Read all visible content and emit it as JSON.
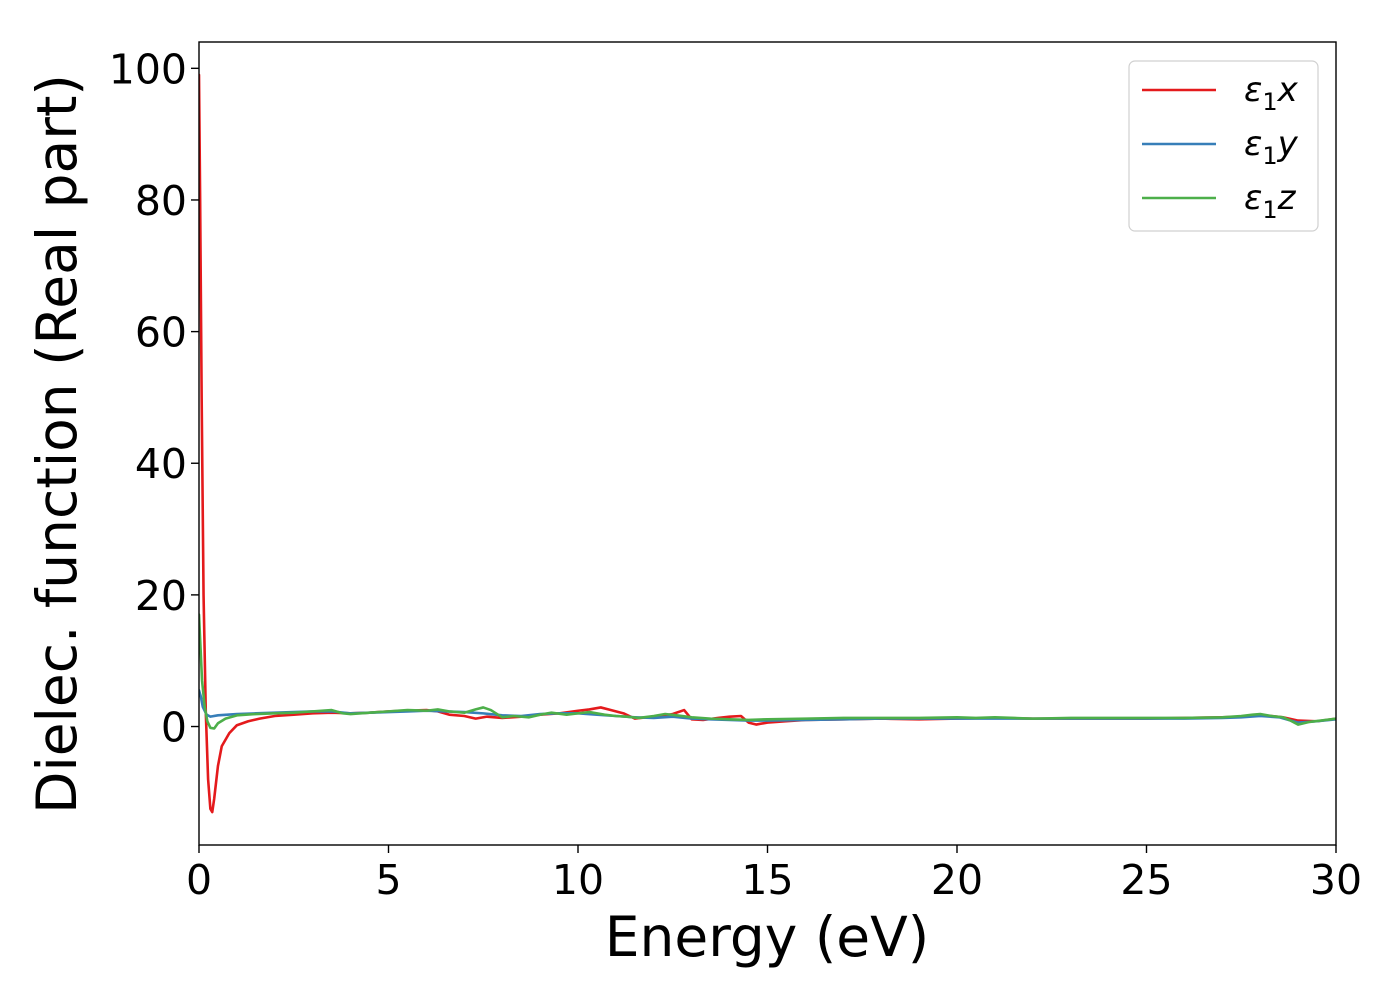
{
  "chart_data": {
    "type": "line",
    "title": "",
    "xlabel": "Energy (eV)",
    "ylabel": "Dielec. function (Real part)",
    "xlim": [
      0,
      30
    ],
    "ylim": [
      -18,
      104
    ],
    "xticks": [
      0,
      5,
      10,
      15,
      20,
      25,
      30
    ],
    "yticks": [
      0,
      20,
      40,
      60,
      80,
      100
    ],
    "grid": false,
    "legend": {
      "position": "top-right",
      "entries": [
        {
          "greek": "ε",
          "sub": "1",
          "var": "x",
          "color": "#e41a1c"
        },
        {
          "greek": "ε",
          "sub": "1",
          "var": "y",
          "color": "#377eb8"
        },
        {
          "greek": "ε",
          "sub": "1",
          "var": "z",
          "color": "#4daf4a"
        }
      ]
    },
    "series": [
      {
        "color": "#e41a1c",
        "x": [
          0,
          0.03,
          0.07,
          0.12,
          0.18,
          0.24,
          0.3,
          0.35,
          0.4,
          0.5,
          0.6,
          0.8,
          1.0,
          1.3,
          1.6,
          2.0,
          2.5,
          3.0,
          3.5,
          4.0,
          4.5,
          5.0,
          5.5,
          6.0,
          6.3,
          6.6,
          7.0,
          7.3,
          7.6,
          8.0,
          8.5,
          9.0,
          9.5,
          10.0,
          10.3,
          10.6,
          10.8,
          11.0,
          11.2,
          11.5,
          11.8,
          12.2,
          12.5,
          12.8,
          13.0,
          13.3,
          13.7,
          14.0,
          14.3,
          14.5,
          14.7,
          15.0,
          15.5,
          16.0,
          17.0,
          18.0,
          19.0,
          20.0,
          21.0,
          22.0,
          23.0,
          24.0,
          25.0,
          26.0,
          27.0,
          27.5,
          28.0,
          28.3,
          28.6,
          29.0,
          29.5,
          30.0
        ],
        "y": [
          99,
          80,
          50,
          20,
          2,
          -8,
          -12.5,
          -13,
          -11,
          -6,
          -3,
          -1,
          0.2,
          0.8,
          1.2,
          1.6,
          1.8,
          2.0,
          2.1,
          2.0,
          2.1,
          2.3,
          2.4,
          2.5,
          2.3,
          1.8,
          1.6,
          1.2,
          1.5,
          1.3,
          1.5,
          1.8,
          2.0,
          2.4,
          2.6,
          2.9,
          2.6,
          2.3,
          2.0,
          1.2,
          1.4,
          1.6,
          1.9,
          2.5,
          1.1,
          1.0,
          1.3,
          1.5,
          1.6,
          0.6,
          0.3,
          0.6,
          0.8,
          1.0,
          1.1,
          1.2,
          1.1,
          1.2,
          1.3,
          1.2,
          1.2,
          1.2,
          1.2,
          1.3,
          1.4,
          1.5,
          1.7,
          1.6,
          1.4,
          0.9,
          0.8,
          1.2
        ]
      },
      {
        "color": "#377eb8",
        "x": [
          0,
          0.05,
          0.1,
          0.2,
          0.3,
          0.5,
          1.0,
          1.5,
          2.0,
          2.5,
          3.0,
          3.5,
          4.0,
          4.5,
          5.0,
          5.5,
          6.0,
          6.5,
          7.0,
          7.5,
          8.0,
          8.5,
          9.0,
          9.5,
          10.0,
          10.5,
          11.0,
          11.5,
          12.0,
          12.5,
          13.0,
          13.5,
          14.0,
          14.5,
          15.0,
          16.0,
          17.0,
          18.0,
          19.0,
          20.0,
          21.0,
          22.0,
          23.0,
          24.0,
          25.0,
          26.0,
          27.0,
          27.5,
          28.0,
          28.5,
          29.0,
          29.5,
          30.0
        ],
        "y": [
          5.5,
          4.5,
          3.0,
          1.8,
          1.5,
          1.7,
          1.9,
          2.0,
          2.1,
          2.2,
          2.3,
          2.3,
          2.0,
          2.1,
          2.2,
          2.3,
          2.4,
          2.3,
          2.2,
          2.0,
          1.7,
          1.6,
          1.9,
          2.0,
          2.0,
          1.8,
          1.6,
          1.4,
          1.3,
          1.5,
          1.2,
          1.1,
          1.0,
          0.9,
          0.9,
          1.0,
          1.1,
          1.2,
          1.2,
          1.2,
          1.2,
          1.2,
          1.2,
          1.2,
          1.2,
          1.2,
          1.3,
          1.4,
          1.6,
          1.4,
          0.6,
          0.8,
          1.1
        ]
      },
      {
        "color": "#4daf4a",
        "x": [
          0,
          0.04,
          0.08,
          0.15,
          0.22,
          0.3,
          0.4,
          0.5,
          0.7,
          1.0,
          1.5,
          2.0,
          2.5,
          3.0,
          3.5,
          3.8,
          4.0,
          4.5,
          5.0,
          5.5,
          6.0,
          6.3,
          6.6,
          7.0,
          7.3,
          7.5,
          7.7,
          8.0,
          8.3,
          8.7,
          9.0,
          9.3,
          9.7,
          10.0,
          10.3,
          10.7,
          11.0,
          11.3,
          11.6,
          12.0,
          12.3,
          12.6,
          13.0,
          13.5,
          14.0,
          14.5,
          15.0,
          16.0,
          17.0,
          18.0,
          19.0,
          20.0,
          20.5,
          21.0,
          21.5,
          22.0,
          23.0,
          24.0,
          25.0,
          26.0,
          27.0,
          27.5,
          27.8,
          28.0,
          28.3,
          28.6,
          28.8,
          29.0,
          29.3,
          29.6,
          30.0
        ],
        "y": [
          17,
          12,
          7,
          3,
          0.8,
          -0.2,
          -0.3,
          0.5,
          1.2,
          1.7,
          1.9,
          2.0,
          2.1,
          2.3,
          2.5,
          2.0,
          1.9,
          2.1,
          2.3,
          2.5,
          2.4,
          2.6,
          2.3,
          2.1,
          2.6,
          2.9,
          2.5,
          1.4,
          1.6,
          1.4,
          1.8,
          2.1,
          1.8,
          2.0,
          2.2,
          1.8,
          1.6,
          1.5,
          1.3,
          1.6,
          1.9,
          1.7,
          1.4,
          1.2,
          1.1,
          1.0,
          1.1,
          1.2,
          1.3,
          1.3,
          1.3,
          1.4,
          1.3,
          1.4,
          1.3,
          1.2,
          1.3,
          1.3,
          1.3,
          1.3,
          1.4,
          1.6,
          1.8,
          1.9,
          1.6,
          1.4,
          0.9,
          0.3,
          0.7,
          0.9,
          1.2
        ]
      }
    ]
  }
}
